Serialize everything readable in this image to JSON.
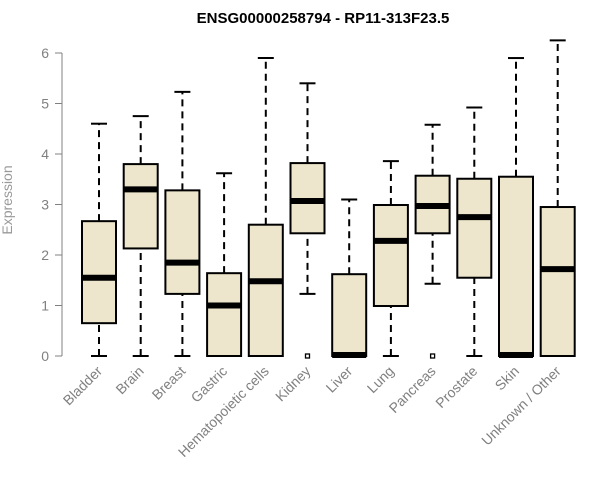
{
  "chart_data": {
    "type": "boxplot",
    "title": "ENSG00000258794 - RP11-313F23.5",
    "xlabel": "",
    "ylabel": "Expression",
    "ylim": [
      0,
      6.25
    ],
    "yticks": [
      "0",
      "1",
      "2",
      "3",
      "4",
      "5",
      "6"
    ],
    "grid": false,
    "box_fill": "#ede6cc",
    "box_stroke": "#000000",
    "axis_color": "#808080",
    "categories": [
      "Bladder",
      "Brain",
      "Breast",
      "Gastric",
      "Hematopoietic cells",
      "Kidney",
      "Liver",
      "Lung",
      "Pancreas",
      "Prostate",
      "Skin",
      "Unknown / Other"
    ],
    "boxes": [
      {
        "name": "Bladder",
        "whisker_low": 0,
        "q1": 0.65,
        "median": 1.55,
        "q3": 2.67,
        "whisker_high": 4.6,
        "outliers": []
      },
      {
        "name": "Brain",
        "whisker_low": 0,
        "q1": 2.13,
        "median": 3.3,
        "q3": 3.8,
        "whisker_high": 4.75,
        "outliers": []
      },
      {
        "name": "Breast",
        "whisker_low": 0,
        "q1": 1.23,
        "median": 1.85,
        "q3": 3.28,
        "whisker_high": 5.23,
        "outliers": []
      },
      {
        "name": "Gastric",
        "whisker_low": 0,
        "q1": 0,
        "median": 1.0,
        "q3": 1.64,
        "whisker_high": 3.62,
        "outliers": []
      },
      {
        "name": "Hematopoietic cells",
        "whisker_low": 0,
        "q1": 0,
        "median": 1.48,
        "q3": 2.6,
        "whisker_high": 5.9,
        "outliers": []
      },
      {
        "name": "Kidney",
        "whisker_low": 1.23,
        "q1": 2.43,
        "median": 3.07,
        "q3": 3.82,
        "whisker_high": 5.4,
        "outliers": [
          0
        ]
      },
      {
        "name": "Liver",
        "whisker_low": 0,
        "q1": 0,
        "median": 0.02,
        "q3": 1.62,
        "whisker_high": 3.1,
        "outliers": []
      },
      {
        "name": "Lung",
        "whisker_low": 0,
        "q1": 0.99,
        "median": 2.28,
        "q3": 2.99,
        "whisker_high": 3.86,
        "outliers": []
      },
      {
        "name": "Pancreas",
        "whisker_low": 1.43,
        "q1": 2.43,
        "median": 2.97,
        "q3": 3.57,
        "whisker_high": 4.58,
        "outliers": [
          0
        ]
      },
      {
        "name": "Prostate",
        "whisker_low": 0,
        "q1": 1.55,
        "median": 2.75,
        "q3": 3.51,
        "whisker_high": 4.92,
        "outliers": []
      },
      {
        "name": "Skin",
        "whisker_low": 0,
        "q1": 0,
        "median": 0.02,
        "q3": 3.55,
        "whisker_high": 5.9,
        "outliers": []
      },
      {
        "name": "Unknown / Other",
        "whisker_low": 0,
        "q1": 0,
        "median": 1.72,
        "q3": 2.95,
        "whisker_high": 6.25,
        "outliers": []
      }
    ]
  }
}
